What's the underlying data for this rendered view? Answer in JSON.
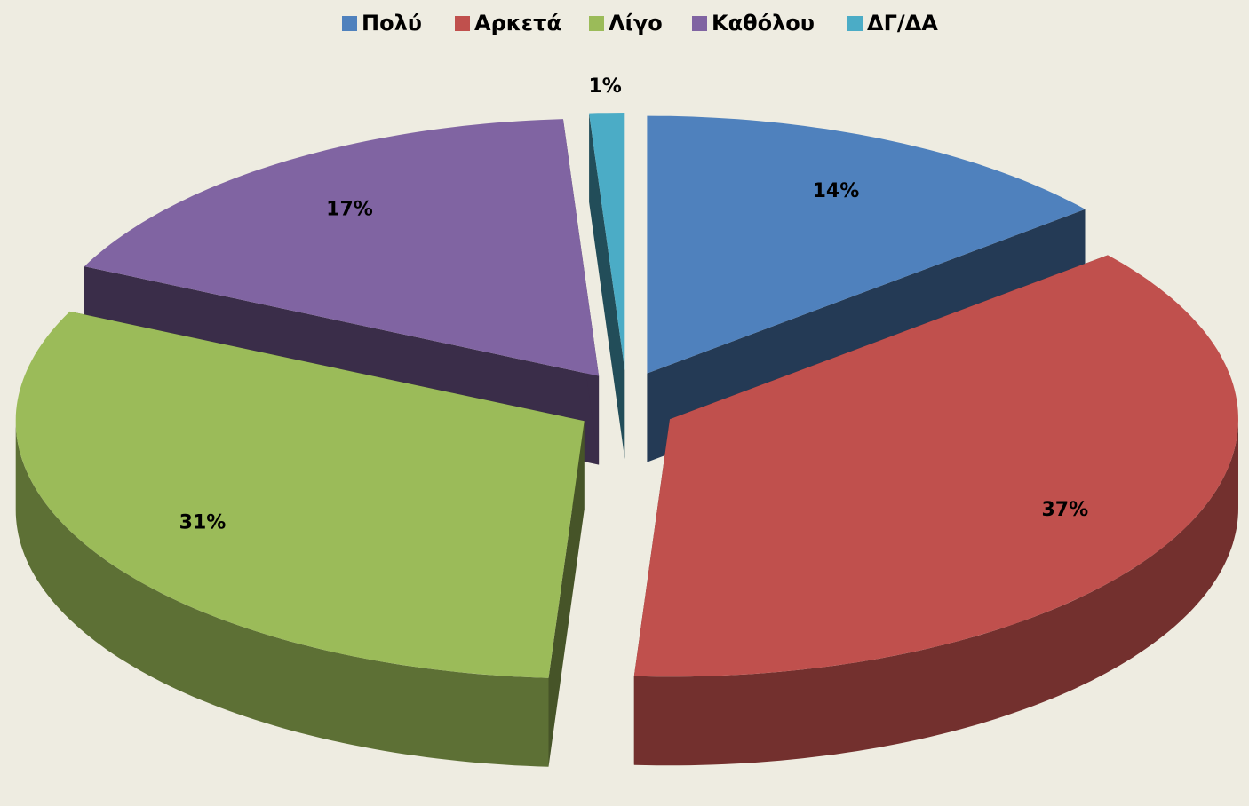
{
  "chart_data": {
    "type": "pie",
    "categories": [
      "Πολύ",
      "Αρκετά",
      "Λίγο",
      "Καθόλου",
      "ΔΓ/ΔΑ"
    ],
    "values": [
      14,
      37,
      31,
      17,
      1
    ],
    "value_labels": [
      "14%",
      "37%",
      "31%",
      "17%",
      "1%"
    ],
    "colors": [
      "#4f81bd",
      "#c0504d",
      "#9bbb59",
      "#8064a2",
      "#4bacc6"
    ],
    "legend": "top"
  }
}
